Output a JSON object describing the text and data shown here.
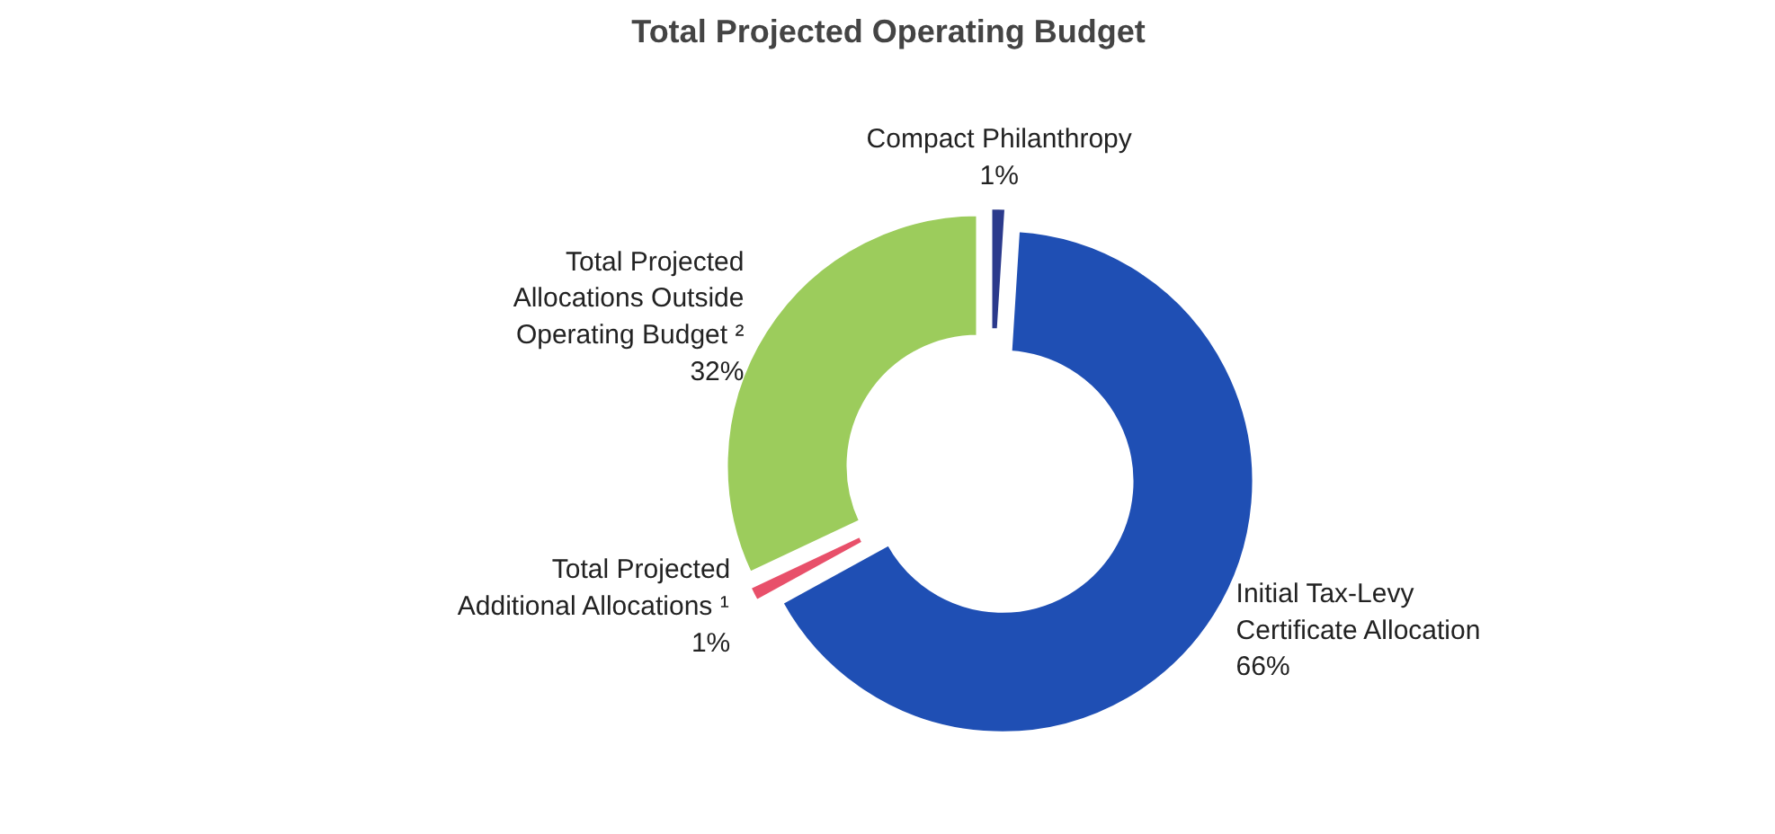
{
  "chart_data": {
    "type": "donut",
    "title": "Total Projected Operating Budget",
    "categories": [
      "Compact Philanthropy",
      "Initial Tax-Levy Certificate Allocation",
      "Total Projected Additional Allocations ¹",
      "Total Projected Allocations Outside Operating Budget ²"
    ],
    "values": [
      1,
      66,
      1,
      32
    ],
    "value_labels": [
      "1%",
      "66%",
      "1%",
      "32%"
    ],
    "colors": [
      "#2b3a8c",
      "#1f4fb4",
      "#e8506a",
      "#9ccc5c"
    ]
  }
}
